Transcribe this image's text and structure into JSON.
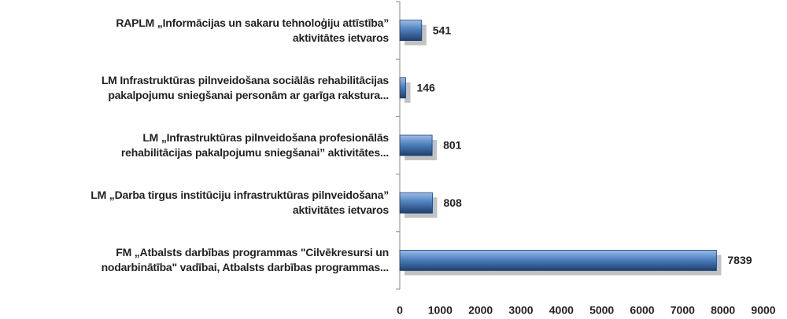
{
  "chart_data": {
    "type": "hbar",
    "categories": [
      "RAPLM „Informācijas un sakaru tehnoloģiju attīstība”\naktivitātes ietvaros",
      "LM Infrastruktūras pilnveidošana sociālās rehabilitācijas\npakalpojumu sniegšanai personām ar garīga rakstura...",
      "LM „Infrastruktūras pilnveidošana profesionālās\nrehabilitācijas pakalpojumu sniegšanai” aktivitātes...",
      "LM „Darba tirgus institūciju infrastruktūras pilnveidošana”\naktivitātes ietvaros",
      "FM „Atbalsts darbības programmas \"Cilvēkresursi un\nnodarbinātība\" vadībai, Atbalsts darbības programmas..."
    ],
    "values": [
      541,
      146,
      801,
      808,
      7839
    ],
    "color": "#4f81bd",
    "xlim": [
      0,
      9000
    ],
    "xticks": [
      0,
      1000,
      2000,
      3000,
      4000,
      5000,
      6000,
      7000,
      8000,
      9000
    ]
  }
}
